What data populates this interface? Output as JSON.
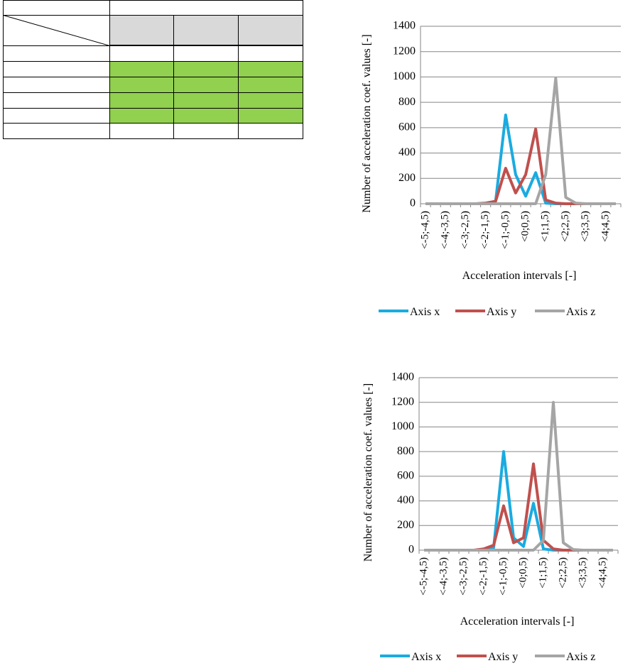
{
  "chart_data": [
    {
      "type": "line",
      "ylabel": "Number of acceleration  coef. values [-]",
      "xlabel": "Acceleration intervals  [-]",
      "categories": [
        "<-5;-4,5)",
        null,
        "<-4;-3,5)",
        null,
        "<-3;-2,5)",
        null,
        "<-2;-1,5)",
        null,
        "<-1;-0,5)",
        null,
        "<0;0,5)",
        null,
        "<1;1,5)",
        null,
        "<2;2,5)",
        null,
        "<3;3,5)",
        null,
        "<4;4,5)",
        null
      ],
      "ylim": [
        0,
        1400
      ],
      "yticks": [
        0,
        200,
        400,
        600,
        800,
        1000,
        1200,
        1400
      ],
      "grid": true,
      "legend": "bottom",
      "series": [
        {
          "name": "Axis x",
          "color": "#1aabe0",
          "values": [
            0,
            0,
            0,
            0,
            0,
            0,
            0,
            20,
            700,
            230,
            60,
            245,
            5,
            0,
            0,
            0,
            0,
            0,
            0,
            0
          ]
        },
        {
          "name": "Axis y",
          "color": "#c0504d",
          "values": [
            0,
            0,
            0,
            0,
            0,
            0,
            5,
            20,
            280,
            85,
            230,
            590,
            30,
            5,
            0,
            0,
            0,
            0,
            0,
            0
          ]
        },
        {
          "name": "Axis z",
          "color": "#a5a5a5",
          "values": [
            0,
            0,
            0,
            0,
            0,
            0,
            0,
            0,
            0,
            0,
            0,
            0,
            230,
            990,
            50,
            5,
            0,
            0,
            0,
            0
          ]
        }
      ]
    },
    {
      "type": "line",
      "ylabel": "Number of acceleration  coef. values [-]",
      "xlabel": "Acceleration intervals  [-]",
      "categories": [
        "<-5;-4,5)",
        null,
        "<-4;-3,5)",
        null,
        "<-3;-2,5)",
        null,
        "<-2;-1,5)",
        null,
        "<-1;-0,5)",
        null,
        "<0;0,5)",
        null,
        "<1;1,5)",
        null,
        "<2;2,5)",
        null,
        "<3;3,5)",
        null,
        "<4;4,5)",
        null
      ],
      "ylim": [
        0,
        1400
      ],
      "yticks": [
        0,
        200,
        400,
        600,
        800,
        1000,
        1200,
        1400
      ],
      "grid": true,
      "legend": "bottom",
      "series": [
        {
          "name": "Axis x",
          "color": "#1aabe0",
          "values": [
            0,
            0,
            0,
            0,
            0,
            0,
            0,
            20,
            800,
            100,
            30,
            380,
            10,
            0,
            0,
            0,
            0,
            0,
            0,
            0
          ]
        },
        {
          "name": "Axis y",
          "color": "#c0504d",
          "values": [
            0,
            0,
            0,
            0,
            0,
            0,
            10,
            40,
            360,
            60,
            100,
            700,
            80,
            10,
            0,
            0,
            0,
            0,
            0,
            0
          ]
        },
        {
          "name": "Axis z",
          "color": "#a5a5a5",
          "values": [
            0,
            0,
            0,
            0,
            0,
            0,
            0,
            0,
            0,
            0,
            0,
            0,
            80,
            1200,
            60,
            5,
            0,
            0,
            0,
            0
          ]
        }
      ]
    }
  ]
}
